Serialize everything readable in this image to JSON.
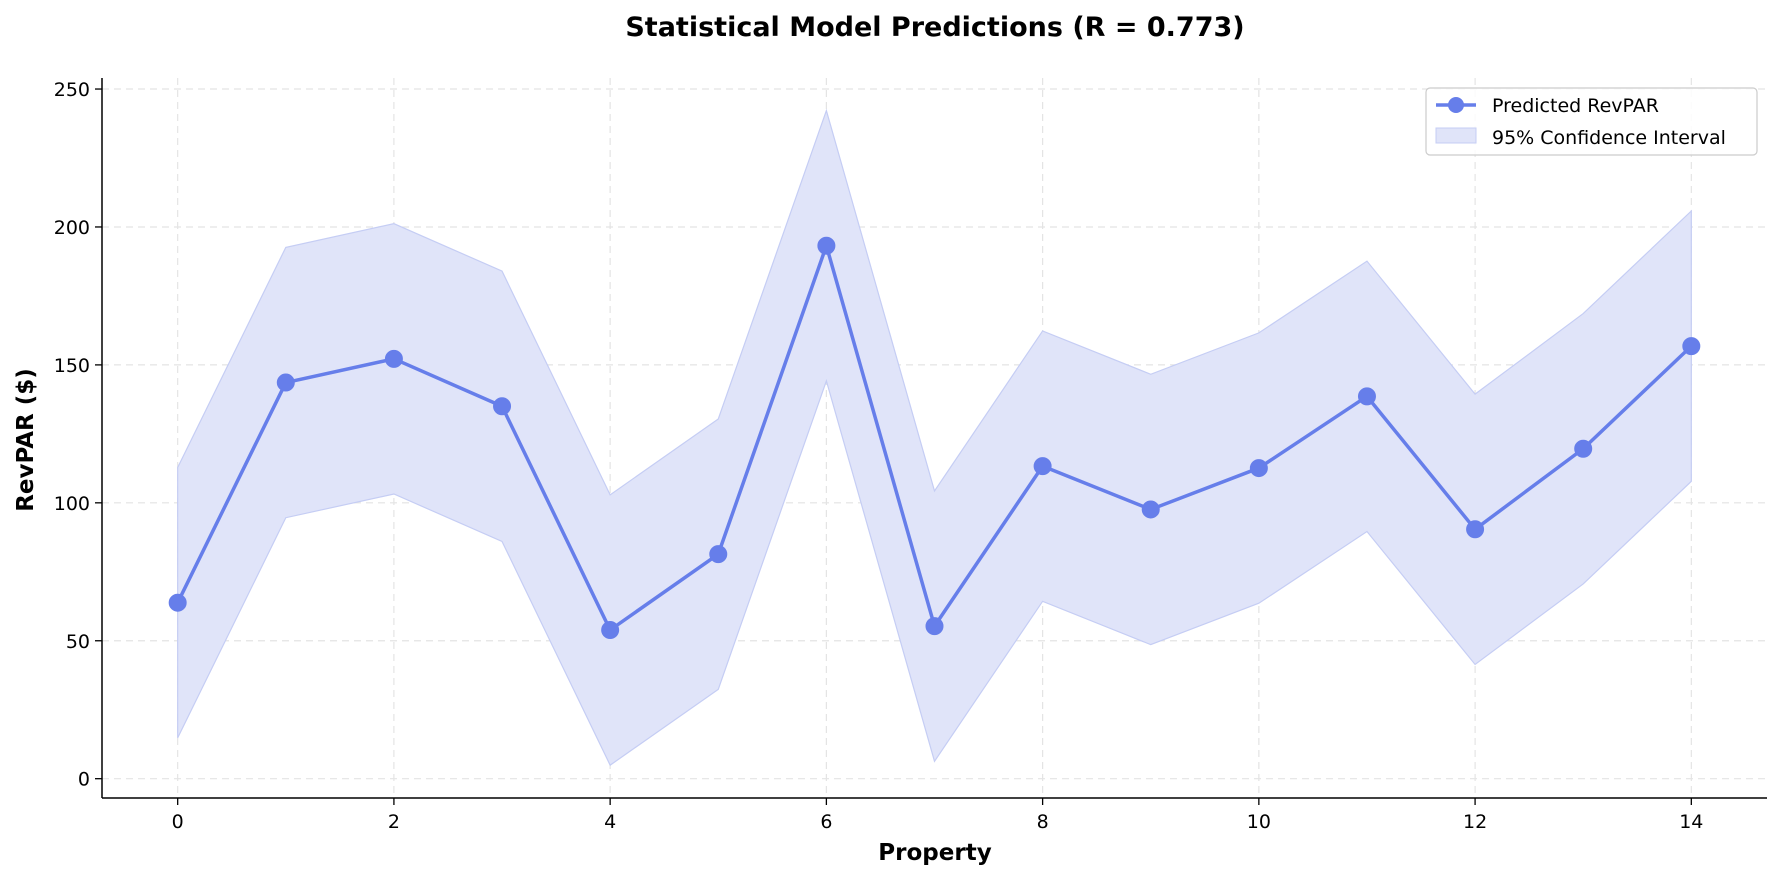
{
  "colors": {
    "line": "#667eea",
    "band_fill": "#e0e4f9",
    "band_edge": "#c5cdf4",
    "grid": "#e4e4e4",
    "axis": "#000000"
  },
  "chart_data": {
    "type": "line",
    "title": "Statistical Model Predictions (R = 0.773)",
    "xlabel": "Property",
    "ylabel": "RevPAR ($)",
    "xlim": [
      -0.7,
      14.7
    ],
    "ylim": [
      -7,
      254
    ],
    "xticks": [
      0,
      2,
      4,
      6,
      8,
      10,
      12,
      14
    ],
    "yticks": [
      0,
      50,
      100,
      150,
      200,
      250
    ],
    "grid": true,
    "legend_position": "top-right",
    "x": [
      0,
      1,
      2,
      3,
      4,
      5,
      6,
      7,
      8,
      9,
      10,
      11,
      12,
      13,
      14
    ],
    "series": [
      {
        "name": "Predicted RevPAR",
        "values": [
          63.8,
          143.6,
          152.2,
          135.0,
          53.9,
          81.4,
          193.2,
          55.3,
          113.3,
          97.6,
          112.6,
          138.6,
          90.4,
          119.6,
          156.8
        ]
      }
    ],
    "confidence_band": {
      "name": "95% Confidence Interval",
      "lower": [
        14.8,
        94.6,
        103.2,
        86.0,
        4.9,
        32.4,
        144.2,
        6.3,
        64.3,
        48.6,
        63.6,
        89.6,
        41.4,
        70.6,
        107.8
      ],
      "upper": [
        112.8,
        192.6,
        201.2,
        184.0,
        102.9,
        130.4,
        242.2,
        104.3,
        162.3,
        146.6,
        161.6,
        187.6,
        139.4,
        168.6,
        205.8
      ]
    }
  }
}
